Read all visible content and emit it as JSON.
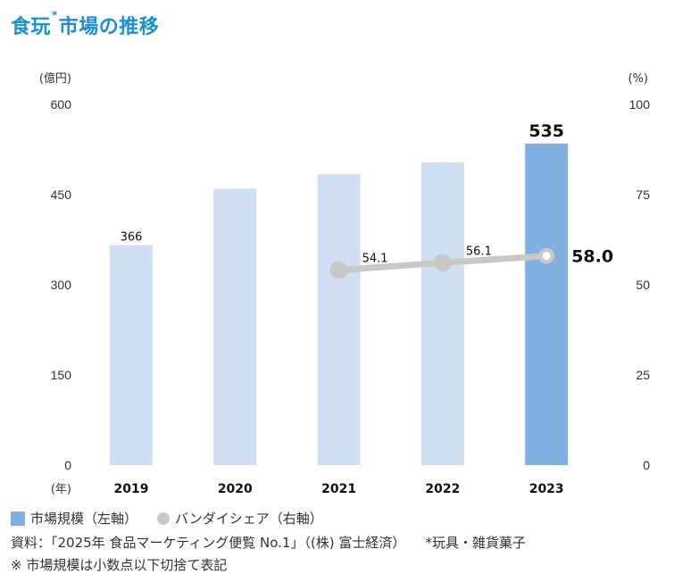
{
  "title": {
    "before": "食玩",
    "marker": "*",
    "after": "市場の推移"
  },
  "chart_data": {
    "type": "bar+line",
    "title": "食玩*市場の推移",
    "categories": [
      "2019",
      "2020",
      "2021",
      "2022",
      "2023"
    ],
    "xlabel": "(年)",
    "ylabel_left": "(億円)",
    "ylabel_right": "(%)",
    "ylim_left": [
      0,
      600
    ],
    "ylim_right": [
      0,
      100
    ],
    "yticks_left": [
      "0",
      "150",
      "300",
      "450",
      "600"
    ],
    "yticks_right": [
      "0",
      "25",
      "50",
      "75",
      "100"
    ],
    "grid": false,
    "series": [
      {
        "name": "市場規模（左軸）",
        "type": "bar",
        "axis": "left",
        "values": [
          366,
          460,
          484,
          504,
          535
        ],
        "labels": [
          "366",
          "",
          "",
          "",
          "535"
        ],
        "color": "#d0dff2",
        "highlight_color": "#7fb0e0",
        "highlight_index": 4
      },
      {
        "name": "バンダイシェア（右軸）",
        "type": "line",
        "axis": "right",
        "values": [
          null,
          null,
          54.1,
          56.1,
          58.0
        ],
        "labels": [
          "",
          "",
          "54.1",
          "56.1",
          "58.0"
        ],
        "color": "#c8c8c8"
      }
    ],
    "legend": "bottom-left"
  },
  "legend": {
    "bar_label": "市場規模（左軸）",
    "line_label": "バンダイシェア（右軸）"
  },
  "notes": {
    "source": "資料：「2025年 食品マーケティング便覧 No.1」（(株) 富士経済）",
    "footnote": "*玩具・雑貨菓子",
    "remark": "※ 市場規模は小数点以下切捨て表記"
  },
  "colors": {
    "title": "#1a8fd6",
    "bar": "#d0dff2",
    "bar_highlight": "#7fb0e0",
    "line": "#c8c8c8"
  }
}
